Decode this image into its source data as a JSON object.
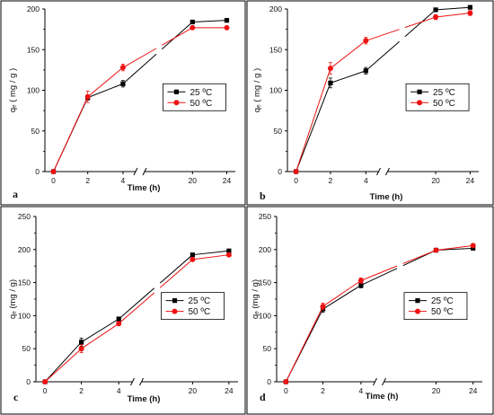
{
  "chart_data": [
    {
      "type": "line",
      "panel_label": "a",
      "categories": [
        "0",
        "2",
        "4",
        "20",
        "24"
      ],
      "xlabel": "Time (h)",
      "ylabel": "qₑ ( mg / g )",
      "ylim": [
        0,
        200
      ],
      "yticks": [
        "0",
        "50",
        "100",
        "150",
        "200"
      ],
      "axis_break": "between 4 and 20",
      "legend_position": "center-right",
      "series": [
        {
          "name": "25 ºC",
          "color": "#000000",
          "marker": "square",
          "values": [
            0,
            91,
            108,
            184,
            186
          ],
          "errors": [
            0,
            3,
            4,
            2,
            2
          ]
        },
        {
          "name": "50 ºC",
          "color": "#ee1111",
          "marker": "circle",
          "values": [
            0,
            92,
            128,
            177,
            177
          ],
          "errors": [
            0,
            7,
            4,
            2,
            2
          ]
        }
      ]
    },
    {
      "type": "line",
      "panel_label": "b",
      "categories": [
        "0",
        "2",
        "4",
        "20",
        "24"
      ],
      "xlabel": "Time (h)",
      "ylabel": "qₑ ( mg / g )",
      "ylim": [
        0,
        200
      ],
      "yticks": [
        "0",
        "50",
        "100",
        "150",
        "200"
      ],
      "axis_break": "between 4 and 20",
      "legend_position": "center-right",
      "series": [
        {
          "name": "25 ºC",
          "color": "#000000",
          "marker": "square",
          "values": [
            0,
            109,
            124,
            199,
            202
          ],
          "errors": [
            0,
            6,
            4,
            2,
            2
          ]
        },
        {
          "name": "50 ºC",
          "color": "#ee1111",
          "marker": "circle",
          "values": [
            0,
            127,
            161,
            190,
            195
          ],
          "errors": [
            0,
            7,
            4,
            3,
            3
          ]
        }
      ]
    },
    {
      "type": "line",
      "panel_label": "c",
      "categories": [
        "0",
        "2",
        "4",
        "20",
        "24"
      ],
      "xlabel": "Time (h)",
      "ylabel": "qₑ (mg / g)",
      "ylim": [
        0,
        250
      ],
      "yticks": [
        "0",
        "50",
        "100",
        "150",
        "200",
        "250"
      ],
      "axis_break": "between 4 and 20",
      "legend_position": "center-right",
      "series": [
        {
          "name": "25 ºC",
          "color": "#000000",
          "marker": "square",
          "values": [
            0,
            60,
            95,
            192,
            198
          ],
          "errors": [
            0,
            6,
            3,
            2,
            2
          ]
        },
        {
          "name": "50 ºC",
          "color": "#ee1111",
          "marker": "circle",
          "values": [
            0,
            50,
            88,
            185,
            192
          ],
          "errors": [
            0,
            6,
            3,
            2,
            2
          ]
        }
      ]
    },
    {
      "type": "line",
      "panel_label": "d",
      "categories": [
        "0",
        "2",
        "4",
        "20",
        "24"
      ],
      "xlabel": "Time (h)",
      "ylabel": "qₑ (mg / g)",
      "ylim": [
        0,
        250
      ],
      "yticks": [
        "0",
        "50",
        "100",
        "150",
        "200",
        "250"
      ],
      "axis_break": "between 4 and 20",
      "legend_position": "center-right",
      "series": [
        {
          "name": "25 ºC",
          "color": "#000000",
          "marker": "square",
          "values": [
            0,
            110,
            146,
            199,
            202
          ],
          "errors": [
            0,
            5,
            4,
            2,
            2
          ]
        },
        {
          "name": "50 ºC",
          "color": "#ee1111",
          "marker": "circle",
          "values": [
            0,
            114,
            153,
            199,
            206
          ],
          "errors": [
            0,
            5,
            4,
            2,
            2
          ]
        }
      ]
    }
  ]
}
